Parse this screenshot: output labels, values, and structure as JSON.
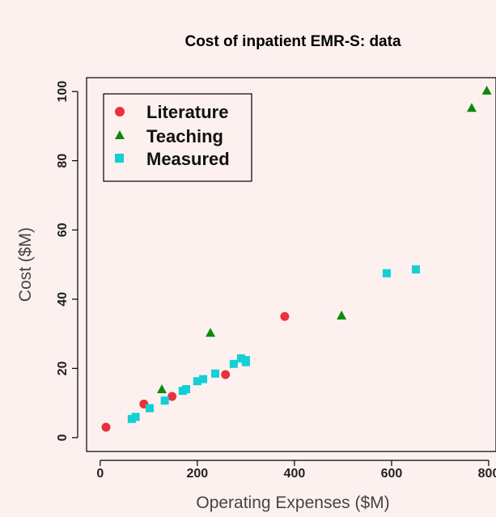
{
  "chart_data": {
    "type": "scatter",
    "title": "Cost of inpatient EMR-S: data",
    "xlabel": "Operating Expenses ($M)",
    "ylabel": "Cost ($M)",
    "xlim": [
      -28,
      815
    ],
    "ylim": [
      -4,
      104
    ],
    "xticks": [
      0,
      200,
      400,
      600,
      800
    ],
    "yticks": [
      0,
      20,
      40,
      60,
      80,
      100
    ],
    "xtick_labels": [
      "0",
      "200",
      "400",
      "600",
      "800"
    ],
    "ytick_labels": [
      "0",
      "20",
      "40",
      "60",
      "80",
      "100"
    ],
    "grid": false,
    "legend_position": "top-left",
    "series": [
      {
        "name": "Literature",
        "marker": "circle",
        "color": "#e8323c",
        "points": [
          [
            12,
            3.0
          ],
          [
            90,
            9.7
          ],
          [
            148,
            11.9
          ],
          [
            258,
            18.2
          ],
          [
            380,
            35.0
          ]
        ]
      },
      {
        "name": "Teaching",
        "marker": "triangle",
        "color": "#0c8a0c",
        "points": [
          [
            127,
            14.0
          ],
          [
            227,
            30.3
          ],
          [
            497,
            35.3
          ],
          [
            765,
            95.3
          ],
          [
            796,
            100.3
          ]
        ]
      },
      {
        "name": "Measured",
        "marker": "square",
        "color": "#14cfd6",
        "points": [
          [
            65,
            5.4
          ],
          [
            73,
            6.0
          ],
          [
            102,
            8.5
          ],
          [
            133,
            10.7
          ],
          [
            170,
            13.5
          ],
          [
            177,
            14.0
          ],
          [
            200,
            16.3
          ],
          [
            212,
            16.9
          ],
          [
            237,
            18.5
          ],
          [
            275,
            21.3
          ],
          [
            290,
            22.9
          ],
          [
            300,
            22.4
          ],
          [
            300,
            21.8
          ],
          [
            590,
            47.5
          ],
          [
            650,
            48.6
          ]
        ]
      }
    ]
  }
}
